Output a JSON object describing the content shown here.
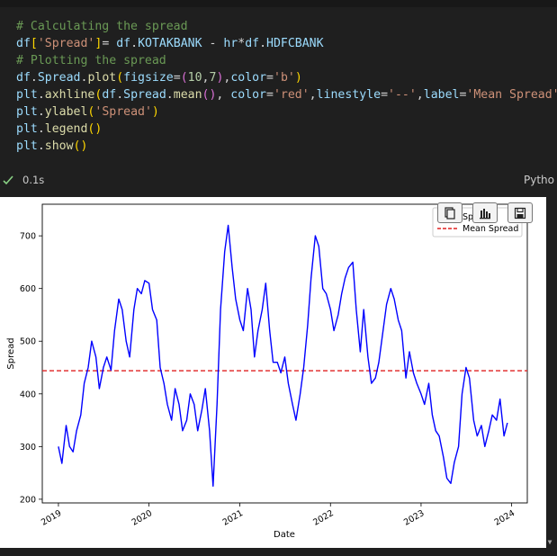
{
  "code_cell": {
    "lines": [
      [
        {
          "t": "# Calculating the spread",
          "c": "cmt"
        }
      ],
      [
        {
          "t": "df",
          "c": "var"
        },
        {
          "t": "[",
          "c": "b1"
        },
        {
          "t": "'Spread'",
          "c": "str"
        },
        {
          "t": "]",
          "c": "b1"
        },
        {
          "t": "= ",
          "c": "op"
        },
        {
          "t": "df",
          "c": "var"
        },
        {
          "t": ".",
          "c": "op"
        },
        {
          "t": "KOTAKBANK",
          "c": "var"
        },
        {
          "t": " - ",
          "c": "op"
        },
        {
          "t": "hr",
          "c": "var"
        },
        {
          "t": "*",
          "c": "op"
        },
        {
          "t": "df",
          "c": "var"
        },
        {
          "t": ".",
          "c": "op"
        },
        {
          "t": "HDFCBANK",
          "c": "var"
        }
      ],
      [
        {
          "t": "# Plotting the spread",
          "c": "cmt"
        }
      ],
      [
        {
          "t": "df",
          "c": "var"
        },
        {
          "t": ".",
          "c": "op"
        },
        {
          "t": "Spread",
          "c": "var"
        },
        {
          "t": ".",
          "c": "op"
        },
        {
          "t": "plot",
          "c": "fn"
        },
        {
          "t": "(",
          "c": "b1"
        },
        {
          "t": "figsize",
          "c": "var"
        },
        {
          "t": "=",
          "c": "op"
        },
        {
          "t": "(",
          "c": "b2"
        },
        {
          "t": "10",
          "c": "num"
        },
        {
          "t": ",",
          "c": "op"
        },
        {
          "t": "7",
          "c": "num"
        },
        {
          "t": ")",
          "c": "b2"
        },
        {
          "t": ",",
          "c": "op"
        },
        {
          "t": "color",
          "c": "var"
        },
        {
          "t": "=",
          "c": "op"
        },
        {
          "t": "'b'",
          "c": "str"
        },
        {
          "t": ")",
          "c": "b1"
        }
      ],
      [
        {
          "t": "plt",
          "c": "var"
        },
        {
          "t": ".",
          "c": "op"
        },
        {
          "t": "axhline",
          "c": "fn"
        },
        {
          "t": "(",
          "c": "b1"
        },
        {
          "t": "df",
          "c": "var"
        },
        {
          "t": ".",
          "c": "op"
        },
        {
          "t": "Spread",
          "c": "var"
        },
        {
          "t": ".",
          "c": "op"
        },
        {
          "t": "mean",
          "c": "fn"
        },
        {
          "t": "()",
          "c": "b2"
        },
        {
          "t": ", ",
          "c": "op"
        },
        {
          "t": "color",
          "c": "var"
        },
        {
          "t": "=",
          "c": "op"
        },
        {
          "t": "'red'",
          "c": "str"
        },
        {
          "t": ",",
          "c": "op"
        },
        {
          "t": "linestyle",
          "c": "var"
        },
        {
          "t": "=",
          "c": "op"
        },
        {
          "t": "'--'",
          "c": "str"
        },
        {
          "t": ",",
          "c": "op"
        },
        {
          "t": "label",
          "c": "var"
        },
        {
          "t": "=",
          "c": "op"
        },
        {
          "t": "'Mean Spread'",
          "c": "str"
        },
        {
          "t": ")",
          "c": "b1"
        }
      ],
      [
        {
          "t": "plt",
          "c": "var"
        },
        {
          "t": ".",
          "c": "op"
        },
        {
          "t": "ylabel",
          "c": "fn"
        },
        {
          "t": "(",
          "c": "b1"
        },
        {
          "t": "'Spread'",
          "c": "str"
        },
        {
          "t": ")",
          "c": "b1"
        }
      ],
      [
        {
          "t": "plt",
          "c": "var"
        },
        {
          "t": ".",
          "c": "op"
        },
        {
          "t": "legend",
          "c": "fn"
        },
        {
          "t": "()",
          "c": "b1"
        }
      ],
      [
        {
          "t": "plt",
          "c": "var"
        },
        {
          "t": ".",
          "c": "op"
        },
        {
          "t": "show",
          "c": "fn"
        },
        {
          "t": "()",
          "c": "b1"
        }
      ]
    ]
  },
  "status": {
    "time": "0.1s",
    "language": "Pytho"
  },
  "toolbar": {
    "icons": [
      "copy-icon",
      "chart-icon",
      "save-icon"
    ]
  },
  "colors": {
    "series": "#0000ff",
    "mean_line": "#e02020",
    "background": "#1f1f1f"
  },
  "chart_data": {
    "type": "line",
    "xlabel": "Date",
    "ylabel": "Spread",
    "x_ticks": [
      "2019",
      "2020",
      "2021",
      "2022",
      "2023",
      "2024"
    ],
    "y_ticks": [
      200,
      300,
      400,
      500,
      600,
      700
    ],
    "xlim": [
      "2018-10-28",
      "2024-03-04"
    ],
    "ylim": [
      193,
      760
    ],
    "grid": false,
    "legend": {
      "position": "top-right",
      "entries": [
        "Spread",
        "Mean Spread"
      ]
    },
    "mean_line": {
      "label": "Mean Spread",
      "y": 444,
      "style": "dashed",
      "color": "red"
    },
    "series": [
      {
        "name": "Spread",
        "color": "blue",
        "x": [
          "2019-01-01",
          "2019-01-15",
          "2019-02-01",
          "2019-02-15",
          "2019-03-01",
          "2019-03-15",
          "2019-04-01",
          "2019-04-15",
          "2019-05-01",
          "2019-05-15",
          "2019-06-01",
          "2019-06-15",
          "2019-07-01",
          "2019-07-15",
          "2019-08-01",
          "2019-08-15",
          "2019-09-01",
          "2019-09-15",
          "2019-10-01",
          "2019-10-15",
          "2019-11-01",
          "2019-11-15",
          "2019-12-01",
          "2019-12-15",
          "2020-01-01",
          "2020-01-15",
          "2020-02-01",
          "2020-02-15",
          "2020-03-01",
          "2020-03-15",
          "2020-04-01",
          "2020-04-15",
          "2020-05-01",
          "2020-05-15",
          "2020-06-01",
          "2020-06-15",
          "2020-07-01",
          "2020-07-15",
          "2020-08-01",
          "2020-08-15",
          "2020-09-01",
          "2020-09-15",
          "2020-10-01",
          "2020-10-15",
          "2020-11-01",
          "2020-11-15",
          "2020-12-01",
          "2020-12-15",
          "2021-01-01",
          "2021-01-15",
          "2021-02-01",
          "2021-02-15",
          "2021-03-01",
          "2021-03-15",
          "2021-04-01",
          "2021-04-15",
          "2021-05-01",
          "2021-05-15",
          "2021-06-01",
          "2021-06-15",
          "2021-07-01",
          "2021-07-15",
          "2021-08-01",
          "2021-08-15",
          "2021-09-01",
          "2021-09-15",
          "2021-10-01",
          "2021-10-15",
          "2021-11-01",
          "2021-11-15",
          "2021-12-01",
          "2021-12-15",
          "2022-01-01",
          "2022-01-15",
          "2022-02-01",
          "2022-02-15",
          "2022-03-01",
          "2022-03-15",
          "2022-04-01",
          "2022-04-15",
          "2022-05-01",
          "2022-05-15",
          "2022-06-01",
          "2022-06-15",
          "2022-07-01",
          "2022-07-15",
          "2022-08-01",
          "2022-08-15",
          "2022-09-01",
          "2022-09-15",
          "2022-10-01",
          "2022-10-15",
          "2022-11-01",
          "2022-11-15",
          "2022-12-01",
          "2022-12-15",
          "2023-01-01",
          "2023-01-15",
          "2023-02-01",
          "2023-02-15",
          "2023-03-01",
          "2023-03-15",
          "2023-04-01",
          "2023-04-15",
          "2023-05-01",
          "2023-05-15",
          "2023-06-01",
          "2023-06-15",
          "2023-07-01",
          "2023-07-15",
          "2023-08-01",
          "2023-08-15",
          "2023-09-01",
          "2023-09-15",
          "2023-10-01",
          "2023-10-15",
          "2023-11-01",
          "2023-11-15",
          "2023-12-01",
          "2023-12-15"
        ],
        "y": [
          300,
          268,
          340,
          300,
          290,
          330,
          360,
          420,
          450,
          500,
          470,
          410,
          450,
          470,
          445,
          520,
          580,
          560,
          500,
          470,
          560,
          600,
          590,
          615,
          610,
          560,
          540,
          450,
          420,
          380,
          350,
          410,
          380,
          330,
          350,
          400,
          380,
          330,
          370,
          410,
          330,
          225,
          380,
          560,
          670,
          720,
          640,
          580,
          540,
          520,
          600,
          560,
          470,
          520,
          560,
          610,
          520,
          460,
          460,
          440,
          470,
          420,
          380,
          350,
          400,
          450,
          530,
          620,
          700,
          680,
          600,
          590,
          560,
          520,
          550,
          590,
          620,
          640,
          650,
          560,
          480,
          560,
          470,
          420,
          430,
          460,
          520,
          570,
          600,
          580,
          540,
          520,
          430,
          480,
          440,
          420,
          400,
          380,
          420,
          360,
          330,
          320,
          280,
          240,
          230,
          270,
          300,
          400,
          450,
          430,
          350,
          320,
          340,
          300,
          330,
          360,
          350,
          390,
          320,
          345
        ]
      }
    ]
  }
}
